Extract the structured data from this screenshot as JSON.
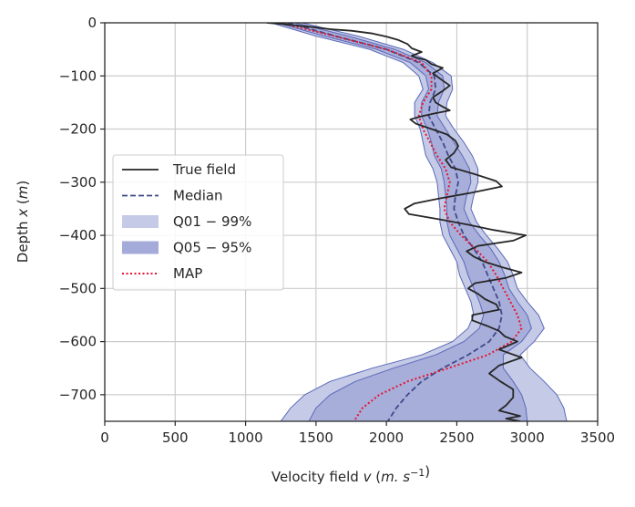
{
  "chart_data": {
    "type": "line",
    "xlabel": "Velocity field v (m.s⁻¹)",
    "ylabel": "Depth x (m)",
    "xlim": [
      0,
      3500
    ],
    "ylim": [
      -750,
      0
    ],
    "xticks": [
      0,
      500,
      1000,
      1500,
      2000,
      2500,
      3000,
      3500
    ],
    "yticks": [
      0,
      -100,
      -200,
      -300,
      -400,
      -500,
      -600,
      -700
    ],
    "grid": true,
    "legend_position": "center-left",
    "colors": {
      "true_field": "#262626",
      "median": "#3f4a8a",
      "q01_99": "#c5cae6",
      "q05_95": "#a4abd8",
      "band_edge": "#5a68b8",
      "map": "#e8132f"
    },
    "legend": [
      {
        "key": "true",
        "label": "True field",
        "style": "solid"
      },
      {
        "key": "median",
        "label": "Median",
        "style": "dashed"
      },
      {
        "key": "q01",
        "label": "Q01 − 99%",
        "style": "patch-light"
      },
      {
        "key": "q05",
        "label": "Q05 − 95%",
        "style": "patch-dark"
      },
      {
        "key": "map",
        "label": "MAP",
        "style": "dotted"
      }
    ],
    "depth": [
      0,
      -25,
      -50,
      -75,
      -100,
      -125,
      -150,
      -175,
      -200,
      -225,
      -250,
      -275,
      -300,
      -325,
      -350,
      -375,
      -400,
      -425,
      -450,
      -475,
      -500,
      -525,
      -550,
      -575,
      -600,
      -625,
      -650,
      -675,
      -700,
      -725,
      -750
    ],
    "q01_99": {
      "lower": [
        1180,
        1500,
        1880,
        2120,
        2230,
        2260,
        2200,
        2200,
        2240,
        2260,
        2280,
        2330,
        2360,
        2370,
        2380,
        2380,
        2400,
        2450,
        2500,
        2520,
        2560,
        2600,
        2620,
        2580,
        2470,
        2250,
        1900,
        1600,
        1420,
        1320,
        1250
      ],
      "upper": [
        1400,
        1800,
        2120,
        2330,
        2460,
        2470,
        2430,
        2420,
        2480,
        2550,
        2610,
        2650,
        2650,
        2620,
        2600,
        2640,
        2710,
        2790,
        2860,
        2900,
        2930,
        3000,
        3080,
        3120,
        3050,
        2950,
        3020,
        3120,
        3210,
        3260,
        3280
      ]
    },
    "q05_95": {
      "lower": [
        1220,
        1560,
        1930,
        2170,
        2280,
        2300,
        2250,
        2250,
        2290,
        2320,
        2340,
        2390,
        2410,
        2420,
        2430,
        2430,
        2450,
        2500,
        2550,
        2580,
        2620,
        2660,
        2690,
        2660,
        2550,
        2350,
        2050,
        1780,
        1600,
        1500,
        1450
      ],
      "upper": [
        1350,
        1730,
        2060,
        2280,
        2400,
        2410,
        2370,
        2360,
        2420,
        2480,
        2540,
        2590,
        2600,
        2570,
        2550,
        2590,
        2660,
        2740,
        2800,
        2840,
        2870,
        2930,
        3000,
        3030,
        2960,
        2830,
        2830,
        2900,
        2960,
        2990,
        3000
      ]
    },
    "median": [
      1300,
      1640,
      2000,
      2230,
      2340,
      2350,
      2310,
      2300,
      2350,
      2400,
      2440,
      2490,
      2510,
      2490,
      2480,
      2510,
      2550,
      2620,
      2680,
      2720,
      2760,
      2800,
      2820,
      2800,
      2730,
      2580,
      2400,
      2250,
      2150,
      2070,
      2010
    ],
    "map": [
      1250,
      1630,
      2000,
      2250,
      2320,
      2320,
      2260,
      2230,
      2260,
      2310,
      2360,
      2420,
      2450,
      2430,
      2410,
      2450,
      2530,
      2630,
      2720,
      2780,
      2830,
      2880,
      2930,
      2960,
      2890,
      2720,
      2440,
      2150,
      1950,
      1830,
      1770
    ],
    "true_field": {
      "x": [
        1150,
        1250,
        1350,
        1480,
        1600,
        1750,
        1900,
        2000,
        2080,
        2150,
        2180,
        2250,
        2180,
        2220,
        2280,
        2320,
        2400,
        2330,
        2380,
        2450,
        2400,
        2330,
        2350,
        2400,
        2450,
        2350,
        2250,
        2170,
        2210,
        2320,
        2430,
        2490,
        2510,
        2480,
        2420,
        2460,
        2630,
        2780,
        2820,
        2600,
        2390,
        2200,
        2130,
        2160,
        2380,
        2580,
        2760,
        2990,
        2900,
        2650,
        2570,
        2620,
        2700,
        2820,
        2960,
        2850,
        2630,
        2580,
        2650,
        2700,
        2780,
        2800,
        2610,
        2610,
        2710,
        2800,
        2840,
        2930,
        2800,
        2960,
        2800,
        2730,
        2810,
        2900,
        2900,
        2850,
        2800,
        2950,
        2850,
        2950
      ],
      "y": [
        0,
        -2,
        -5,
        -8,
        -12,
        -15,
        -20,
        -26,
        -32,
        -40,
        -48,
        -55,
        -62,
        -66,
        -70,
        -78,
        -85,
        -95,
        -105,
        -118,
        -128,
        -140,
        -150,
        -158,
        -165,
        -170,
        -176,
        -182,
        -190,
        -200,
        -210,
        -222,
        -232,
        -245,
        -258,
        -272,
        -285,
        -298,
        -308,
        -320,
        -330,
        -340,
        -350,
        -360,
        -370,
        -380,
        -390,
        -400,
        -410,
        -420,
        -430,
        -440,
        -450,
        -460,
        -470,
        -480,
        -490,
        -500,
        -510,
        -520,
        -530,
        -540,
        -550,
        -560,
        -570,
        -580,
        -590,
        -600,
        -615,
        -630,
        -645,
        -660,
        -675,
        -690,
        -705,
        -720,
        -730,
        -740,
        -745,
        -750
      ]
    }
  }
}
